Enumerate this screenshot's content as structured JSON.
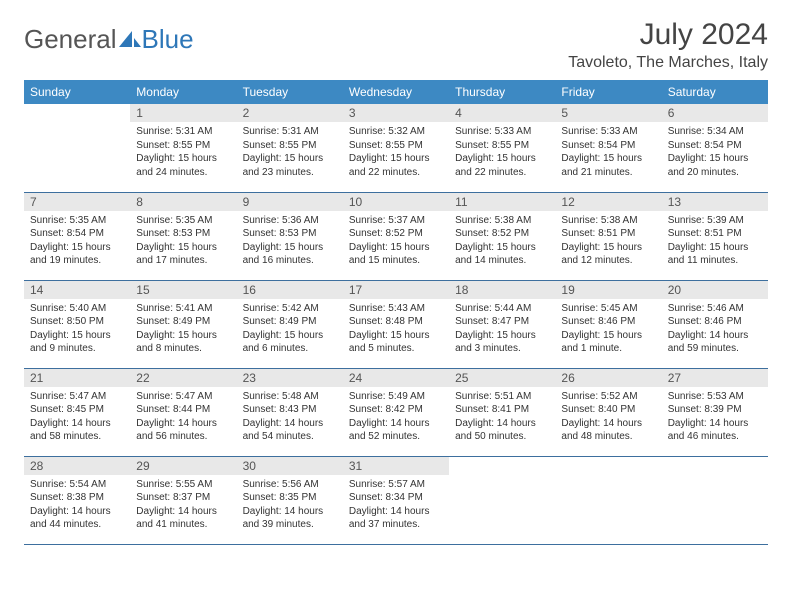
{
  "logo": {
    "text1": "General",
    "text2": "Blue"
  },
  "title": "July 2024",
  "location": "Tavoleto, The Marches, Italy",
  "colors": {
    "header_bg": "#3d89c3",
    "header_text": "#ffffff",
    "daynum_bg": "#e8e8e8",
    "rule": "#3d6f9e",
    "logo_blue": "#2e77b8"
  },
  "weekdays": [
    "Sunday",
    "Monday",
    "Tuesday",
    "Wednesday",
    "Thursday",
    "Friday",
    "Saturday"
  ],
  "grid": [
    [
      {
        "n": "",
        "sunrise": "",
        "sunset": "",
        "dl1": "",
        "dl2": ""
      },
      {
        "n": "1",
        "sunrise": "Sunrise: 5:31 AM",
        "sunset": "Sunset: 8:55 PM",
        "dl1": "Daylight: 15 hours",
        "dl2": "and 24 minutes."
      },
      {
        "n": "2",
        "sunrise": "Sunrise: 5:31 AM",
        "sunset": "Sunset: 8:55 PM",
        "dl1": "Daylight: 15 hours",
        "dl2": "and 23 minutes."
      },
      {
        "n": "3",
        "sunrise": "Sunrise: 5:32 AM",
        "sunset": "Sunset: 8:55 PM",
        "dl1": "Daylight: 15 hours",
        "dl2": "and 22 minutes."
      },
      {
        "n": "4",
        "sunrise": "Sunrise: 5:33 AM",
        "sunset": "Sunset: 8:55 PM",
        "dl1": "Daylight: 15 hours",
        "dl2": "and 22 minutes."
      },
      {
        "n": "5",
        "sunrise": "Sunrise: 5:33 AM",
        "sunset": "Sunset: 8:54 PM",
        "dl1": "Daylight: 15 hours",
        "dl2": "and 21 minutes."
      },
      {
        "n": "6",
        "sunrise": "Sunrise: 5:34 AM",
        "sunset": "Sunset: 8:54 PM",
        "dl1": "Daylight: 15 hours",
        "dl2": "and 20 minutes."
      }
    ],
    [
      {
        "n": "7",
        "sunrise": "Sunrise: 5:35 AM",
        "sunset": "Sunset: 8:54 PM",
        "dl1": "Daylight: 15 hours",
        "dl2": "and 19 minutes."
      },
      {
        "n": "8",
        "sunrise": "Sunrise: 5:35 AM",
        "sunset": "Sunset: 8:53 PM",
        "dl1": "Daylight: 15 hours",
        "dl2": "and 17 minutes."
      },
      {
        "n": "9",
        "sunrise": "Sunrise: 5:36 AM",
        "sunset": "Sunset: 8:53 PM",
        "dl1": "Daylight: 15 hours",
        "dl2": "and 16 minutes."
      },
      {
        "n": "10",
        "sunrise": "Sunrise: 5:37 AM",
        "sunset": "Sunset: 8:52 PM",
        "dl1": "Daylight: 15 hours",
        "dl2": "and 15 minutes."
      },
      {
        "n": "11",
        "sunrise": "Sunrise: 5:38 AM",
        "sunset": "Sunset: 8:52 PM",
        "dl1": "Daylight: 15 hours",
        "dl2": "and 14 minutes."
      },
      {
        "n": "12",
        "sunrise": "Sunrise: 5:38 AM",
        "sunset": "Sunset: 8:51 PM",
        "dl1": "Daylight: 15 hours",
        "dl2": "and 12 minutes."
      },
      {
        "n": "13",
        "sunrise": "Sunrise: 5:39 AM",
        "sunset": "Sunset: 8:51 PM",
        "dl1": "Daylight: 15 hours",
        "dl2": "and 11 minutes."
      }
    ],
    [
      {
        "n": "14",
        "sunrise": "Sunrise: 5:40 AM",
        "sunset": "Sunset: 8:50 PM",
        "dl1": "Daylight: 15 hours",
        "dl2": "and 9 minutes."
      },
      {
        "n": "15",
        "sunrise": "Sunrise: 5:41 AM",
        "sunset": "Sunset: 8:49 PM",
        "dl1": "Daylight: 15 hours",
        "dl2": "and 8 minutes."
      },
      {
        "n": "16",
        "sunrise": "Sunrise: 5:42 AM",
        "sunset": "Sunset: 8:49 PM",
        "dl1": "Daylight: 15 hours",
        "dl2": "and 6 minutes."
      },
      {
        "n": "17",
        "sunrise": "Sunrise: 5:43 AM",
        "sunset": "Sunset: 8:48 PM",
        "dl1": "Daylight: 15 hours",
        "dl2": "and 5 minutes."
      },
      {
        "n": "18",
        "sunrise": "Sunrise: 5:44 AM",
        "sunset": "Sunset: 8:47 PM",
        "dl1": "Daylight: 15 hours",
        "dl2": "and 3 minutes."
      },
      {
        "n": "19",
        "sunrise": "Sunrise: 5:45 AM",
        "sunset": "Sunset: 8:46 PM",
        "dl1": "Daylight: 15 hours",
        "dl2": "and 1 minute."
      },
      {
        "n": "20",
        "sunrise": "Sunrise: 5:46 AM",
        "sunset": "Sunset: 8:46 PM",
        "dl1": "Daylight: 14 hours",
        "dl2": "and 59 minutes."
      }
    ],
    [
      {
        "n": "21",
        "sunrise": "Sunrise: 5:47 AM",
        "sunset": "Sunset: 8:45 PM",
        "dl1": "Daylight: 14 hours",
        "dl2": "and 58 minutes."
      },
      {
        "n": "22",
        "sunrise": "Sunrise: 5:47 AM",
        "sunset": "Sunset: 8:44 PM",
        "dl1": "Daylight: 14 hours",
        "dl2": "and 56 minutes."
      },
      {
        "n": "23",
        "sunrise": "Sunrise: 5:48 AM",
        "sunset": "Sunset: 8:43 PM",
        "dl1": "Daylight: 14 hours",
        "dl2": "and 54 minutes."
      },
      {
        "n": "24",
        "sunrise": "Sunrise: 5:49 AM",
        "sunset": "Sunset: 8:42 PM",
        "dl1": "Daylight: 14 hours",
        "dl2": "and 52 minutes."
      },
      {
        "n": "25",
        "sunrise": "Sunrise: 5:51 AM",
        "sunset": "Sunset: 8:41 PM",
        "dl1": "Daylight: 14 hours",
        "dl2": "and 50 minutes."
      },
      {
        "n": "26",
        "sunrise": "Sunrise: 5:52 AM",
        "sunset": "Sunset: 8:40 PM",
        "dl1": "Daylight: 14 hours",
        "dl2": "and 48 minutes."
      },
      {
        "n": "27",
        "sunrise": "Sunrise: 5:53 AM",
        "sunset": "Sunset: 8:39 PM",
        "dl1": "Daylight: 14 hours",
        "dl2": "and 46 minutes."
      }
    ],
    [
      {
        "n": "28",
        "sunrise": "Sunrise: 5:54 AM",
        "sunset": "Sunset: 8:38 PM",
        "dl1": "Daylight: 14 hours",
        "dl2": "and 44 minutes."
      },
      {
        "n": "29",
        "sunrise": "Sunrise: 5:55 AM",
        "sunset": "Sunset: 8:37 PM",
        "dl1": "Daylight: 14 hours",
        "dl2": "and 41 minutes."
      },
      {
        "n": "30",
        "sunrise": "Sunrise: 5:56 AM",
        "sunset": "Sunset: 8:35 PM",
        "dl1": "Daylight: 14 hours",
        "dl2": "and 39 minutes."
      },
      {
        "n": "31",
        "sunrise": "Sunrise: 5:57 AM",
        "sunset": "Sunset: 8:34 PM",
        "dl1": "Daylight: 14 hours",
        "dl2": "and 37 minutes."
      },
      {
        "n": "",
        "sunrise": "",
        "sunset": "",
        "dl1": "",
        "dl2": ""
      },
      {
        "n": "",
        "sunrise": "",
        "sunset": "",
        "dl1": "",
        "dl2": ""
      },
      {
        "n": "",
        "sunrise": "",
        "sunset": "",
        "dl1": "",
        "dl2": ""
      }
    ]
  ]
}
